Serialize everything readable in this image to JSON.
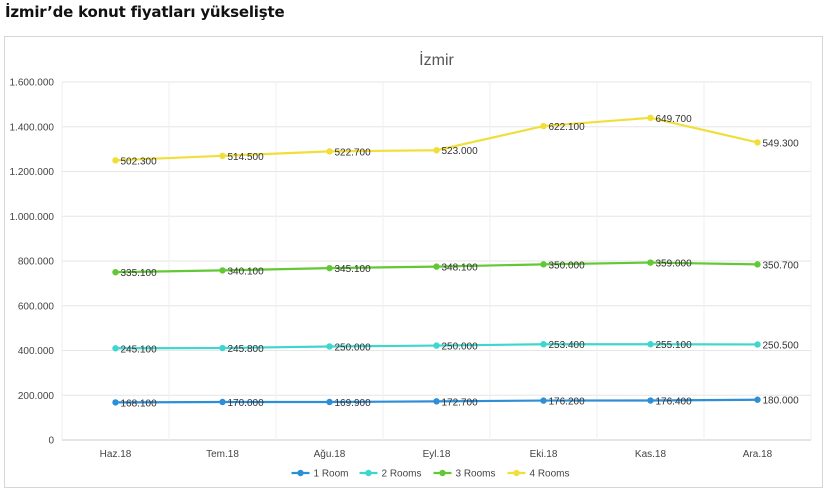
{
  "headline": "İzmir’de konut fiyatları yükselişte",
  "chart_data": {
    "type": "line",
    "title": "İzmir",
    "categories": [
      "Haz.18",
      "Tem.18",
      "Ağu.18",
      "Eyl.18",
      "Eki.18",
      "Kas.18",
      "Ara.18"
    ],
    "ylim": [
      0,
      1600000
    ],
    "yticks": [
      0,
      200000,
      400000,
      600000,
      800000,
      1000000,
      1200000,
      1400000,
      1600000
    ],
    "ytick_labels": [
      "0",
      "200.000",
      "400.000",
      "600.000",
      "800.000",
      "1.000.000",
      "1.200.000",
      "1.400.000",
      "1.600.000"
    ],
    "grid": true,
    "legend_position": "bottom",
    "series": [
      {
        "name": "1 Room",
        "color": "#2e8fd6",
        "values": [
          168100,
          170000,
          169900,
          172700,
          176200,
          176400,
          180000
        ],
        "labels": [
          "168.100",
          "170.000",
          "169.900",
          "172.700",
          "176.200",
          "176.400",
          "180.000"
        ]
      },
      {
        "name": "2 Rooms",
        "color": "#3fd6cf",
        "values": [
          410000,
          411000,
          418000,
          422000,
          428000,
          428000,
          427000
        ],
        "labels": [
          "245.100",
          "245.800",
          "250.000",
          "250.000",
          "253.400",
          "255.100",
          "250.500"
        ]
      },
      {
        "name": "3 Rooms",
        "color": "#62c836",
        "values": [
          750000,
          758000,
          768000,
          775000,
          785000,
          793000,
          785000
        ],
        "labels": [
          "335.100",
          "340.100",
          "345.100",
          "348.100",
          "350.000",
          "359.000",
          "350.700"
        ]
      },
      {
        "name": "4 Rooms",
        "color": "#f0df3a",
        "values": [
          1250000,
          1270000,
          1290000,
          1295000,
          1403000,
          1440000,
          1330000
        ],
        "labels": [
          "502.300",
          "514.500",
          "522.700",
          "523.000",
          "622.100",
          "649.700",
          "549.300"
        ]
      }
    ]
  }
}
